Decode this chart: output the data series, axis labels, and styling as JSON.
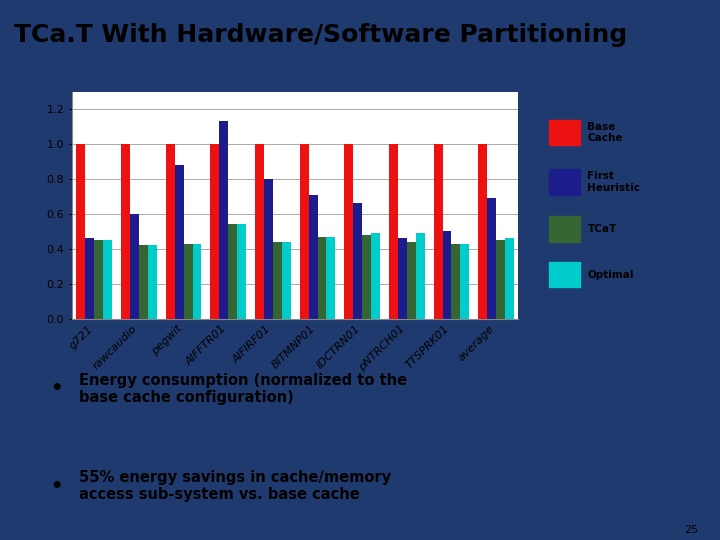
{
  "title": "TCa.T With Hardware/Software Partitioning",
  "categories": [
    "g721",
    "rawcaudio",
    "pegwit",
    "AIFFTR01",
    "AIFIRF01",
    "BITMNP01",
    "IDCTRN01",
    "pNTRCH01",
    "TTSPRK01",
    "average"
  ],
  "series": {
    "Base Cache": {
      "color": "#EE1111",
      "values": [
        1.0,
        1.0,
        1.0,
        1.0,
        1.0,
        1.0,
        1.0,
        1.0,
        1.0,
        1.0
      ]
    },
    "First Heuristic": {
      "color": "#1C1C8C",
      "values": [
        0.46,
        0.6,
        0.88,
        1.13,
        0.8,
        0.71,
        0.66,
        0.46,
        0.5,
        0.69
      ]
    },
    "TCaT": {
      "color": "#336633",
      "values": [
        0.45,
        0.42,
        0.43,
        0.54,
        0.44,
        0.47,
        0.48,
        0.44,
        0.43,
        0.45
      ]
    },
    "Optimal": {
      "color": "#00CCCC",
      "values": [
        0.45,
        0.42,
        0.43,
        0.54,
        0.44,
        0.47,
        0.49,
        0.49,
        0.43,
        0.46
      ]
    }
  },
  "ylim": [
    0,
    1.3
  ],
  "yticks": [
    0,
    0.2,
    0.4,
    0.6,
    0.8,
    1.0,
    1.2
  ],
  "slide_bg": "#1F3A6E",
  "title_color": "#FFFFFF",
  "title_fontsize": 18,
  "axis_fontsize": 8,
  "legend_labels": [
    "Base\nCache",
    "First\nHeuristic",
    "TCaT",
    "Optimal"
  ],
  "legend_colors": [
    "#EE1111",
    "#1C1C8C",
    "#336633",
    "#00CCCC"
  ],
  "bullet_texts": [
    "Energy consumption (normalized to the\nbase cache configuration)",
    "55% energy savings in cache/memory\naccess sub-system vs. base cache"
  ],
  "page_number": "25",
  "bar_width": 0.2
}
